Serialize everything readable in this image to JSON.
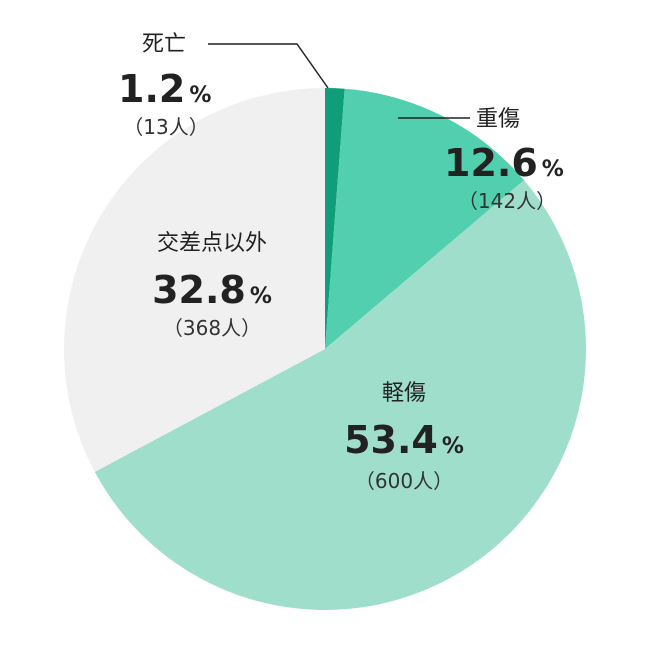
{
  "chart_data": {
    "type": "pie",
    "start_angle_deg": 0,
    "direction": "clockwise",
    "slices": [
      {
        "name": "死亡",
        "percent": 1.2,
        "percent_text": "1.2",
        "count": "（13人）",
        "color": "#0f9d7a"
      },
      {
        "name": "重傷",
        "percent": 12.6,
        "percent_text": "12.6",
        "count": "（142人）",
        "color": "#52cfae"
      },
      {
        "name": "軽傷",
        "percent": 53.4,
        "percent_text": "53.4",
        "count": "（600人）",
        "color": "#9fdecb"
      },
      {
        "name": "交差点以外",
        "percent": 32.8,
        "percent_text": "32.8",
        "count": "（368人）",
        "color": "#f0f0f0"
      }
    ],
    "percent_sign": "%"
  }
}
